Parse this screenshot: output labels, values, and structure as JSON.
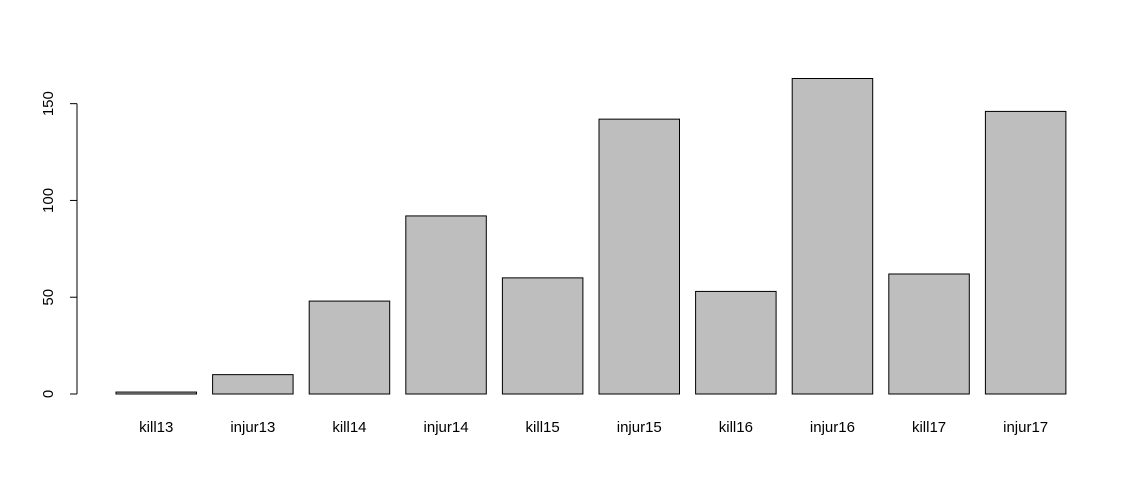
{
  "chart_data": {
    "type": "bar",
    "title": "",
    "xlabel": "",
    "ylabel": "",
    "categories": [
      "kill13",
      "injur13",
      "kill14",
      "injur14",
      "kill15",
      "injur15",
      "kill16",
      "injur16",
      "kill17",
      "injur17"
    ],
    "values": [
      1,
      10,
      48,
      92,
      60,
      142,
      53,
      163,
      62,
      146
    ],
    "ylim": [
      0,
      163
    ],
    "yticks": [
      0,
      50,
      100,
      150
    ],
    "grid": false,
    "legend": "none",
    "bar_color": "#bebebe",
    "bar_border_color": "#000000"
  }
}
